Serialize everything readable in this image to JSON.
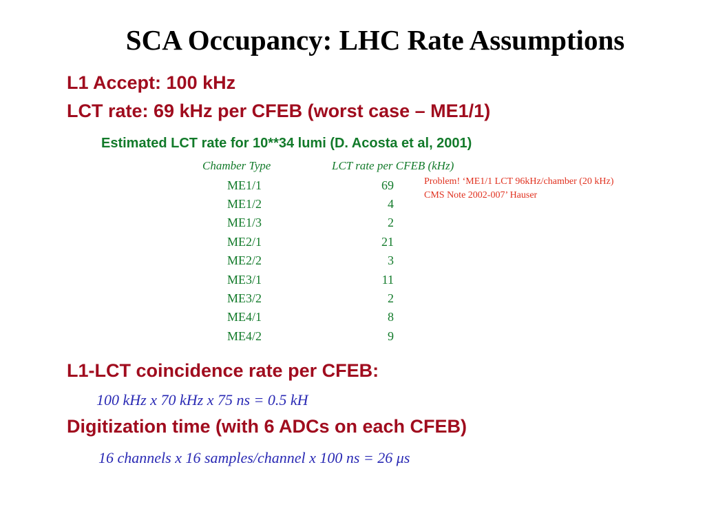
{
  "slide": {
    "title": "SCA Occupancy: LHC Rate Assumptions",
    "l1_accept": "L1 Accept: 100 kHz",
    "lct_rate": "LCT rate: 69 kHz per CFEB (worst case – ME1/1)",
    "estimate_note": "Estimated LCT rate for 10**34 lumi (D. Acosta et al,  2001)",
    "table": {
      "header_type": "Chamber Type",
      "header_rate": "LCT rate per CFEB (kHz)",
      "rows": [
        {
          "type": "ME1/1",
          "rate": "69"
        },
        {
          "type": "ME1/2",
          "rate": "4"
        },
        {
          "type": "ME1/3",
          "rate": "2"
        },
        {
          "type": "ME2/1",
          "rate": "21"
        },
        {
          "type": "ME2/2",
          "rate": "3"
        },
        {
          "type": "ME3/1",
          "rate": "11"
        },
        {
          "type": "ME3/2",
          "rate": "2"
        },
        {
          "type": "ME4/1",
          "rate": "8"
        },
        {
          "type": "ME4/2",
          "rate": "9"
        }
      ]
    },
    "problem_note": {
      "line1": "Problem! ‘ME1/1 LCT 96kHz/chamber (20 kHz)",
      "line2": "CMS Note 2002-007’ Hauser"
    },
    "coincidence_heading": "L1-LCT coincidence rate per CFEB:",
    "coincidence_formula": "100 kHz x 70 kHz x 75 ns = 0.5 kH",
    "digitization_heading": "Digitization time (with 6 ADCs on each CFEB)",
    "digitization_formula_main": "16 channels x 16 samples/channel x 100 ns = 26 ",
    "digitization_formula_unit": "μs"
  },
  "colors": {
    "heading_red": "#a00c1e",
    "table_green": "#127a2a",
    "problem_orange": "#e0301e",
    "formula_blue": "#2a2ab4"
  }
}
